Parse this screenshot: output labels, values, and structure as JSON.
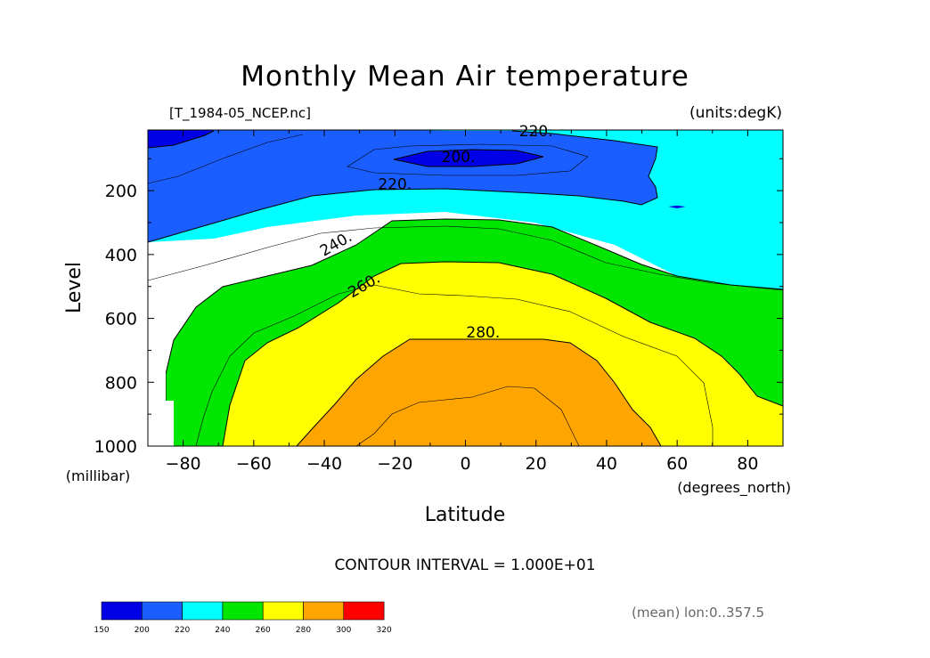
{
  "chart_data": {
    "type": "contour",
    "title": "Monthly Mean Air temperature",
    "source_file": "[T_1984-05_NCEP.nc]",
    "units_label": "(units:degK)",
    "xlabel": "Latitude",
    "xunit": "(degrees_north)",
    "ylabel": "Level",
    "yunit": "(millibar)",
    "xlim": [
      -90,
      90
    ],
    "ylim": [
      1000,
      10
    ],
    "xticks": [
      -80,
      -60,
      -40,
      -20,
      0,
      20,
      40,
      60,
      80
    ],
    "xtick_labels": [
      "−80",
      "−60",
      "−40",
      "−20",
      "0",
      "20",
      "40",
      "60",
      "80"
    ],
    "yticks": [
      200,
      400,
      600,
      800,
      1000
    ],
    "ytick_labels": [
      "200",
      "400",
      "600",
      "800",
      "1000"
    ],
    "contour_interval_text": "CONTOUR INTERVAL = 1.000E+01",
    "averaging_note": "(mean) lon:0..357.5",
    "contour_labels": [
      {
        "text": "200.",
        "lat": -2,
        "level": 110,
        "rotate": 0
      },
      {
        "text": "220.",
        "lat": 20,
        "level": 30,
        "rotate": 0
      },
      {
        "text": "220.",
        "lat": -20,
        "level": 195,
        "rotate": 0
      },
      {
        "text": "240.",
        "lat": -36,
        "level": 380,
        "rotate": -30
      },
      {
        "text": "260.",
        "lat": -28,
        "level": 510,
        "rotate": -30
      },
      {
        "text": "280.",
        "lat": 5,
        "level": 660,
        "rotate": 0
      }
    ],
    "filled_levels": [
      {
        "range": "200-220",
        "color": "#1a5eff"
      },
      {
        "range": "220-240",
        "color": "#00ffff"
      },
      {
        "range": "240-260",
        "color": "#00e600"
      },
      {
        "range": "260-280",
        "color": "#ffff00"
      },
      {
        "range": "280-300",
        "color": "#ffa500"
      },
      {
        "range": "<200",
        "color": "#0000e6"
      }
    ],
    "colorbar": {
      "ticks": [
        "150",
        "200",
        "220",
        "240",
        "260",
        "280",
        "300",
        "320"
      ],
      "colors": [
        "#0000e6",
        "#1a5eff",
        "#00ffff",
        "#00e600",
        "#ffff00",
        "#ffa500",
        "#ff0000"
      ]
    }
  }
}
